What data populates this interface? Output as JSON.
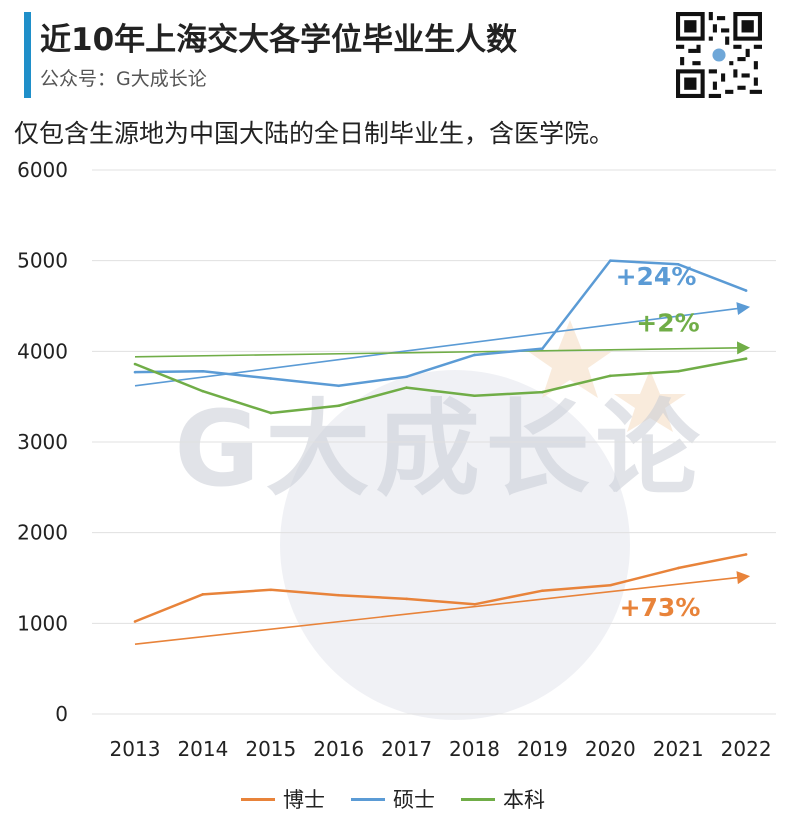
{
  "header": {
    "title": "近10年上海交大各学位毕业生人数",
    "subtitle": "公众号：G大成长论",
    "note": "仅包含生源地为中国大陆的全日制毕业生，含医学院。",
    "watermark": "G大成长论"
  },
  "colors": {
    "accent": "#1f8fc9",
    "phd": "#e8833a",
    "master": "#5b9bd5",
    "bachelor": "#70ad47",
    "grid": "#e0e0e0",
    "watermark": "#c9ccd6"
  },
  "chart_data": {
    "type": "line",
    "categories": [
      "2013",
      "2014",
      "2015",
      "2016",
      "2017",
      "2018",
      "2019",
      "2020",
      "2021",
      "2022"
    ],
    "ylim": [
      0,
      6000
    ],
    "yticks": [
      "0",
      "1000",
      "2000",
      "3000",
      "4000",
      "5000",
      "6000"
    ],
    "grid": true,
    "legend_position": "bottom",
    "series": [
      {
        "name": "博士",
        "color": "#e8833a",
        "values": [
          1020,
          1320,
          1370,
          1310,
          1270,
          1210,
          1360,
          1420,
          1610,
          1760
        ],
        "trend": [
          770,
          1520
        ],
        "annotation": "+73%"
      },
      {
        "name": "硕士",
        "color": "#5b9bd5",
        "values": [
          3770,
          3780,
          3700,
          3620,
          3720,
          3960,
          4030,
          5000,
          4960,
          4670
        ],
        "trend": [
          3620,
          4490
        ],
        "annotation": "+24%"
      },
      {
        "name": "本科",
        "color": "#70ad47",
        "values": [
          3860,
          3560,
          3320,
          3400,
          3600,
          3510,
          3550,
          3730,
          3780,
          3920
        ],
        "trend": [
          3940,
          4040
        ],
        "annotation": "+2%"
      }
    ]
  }
}
